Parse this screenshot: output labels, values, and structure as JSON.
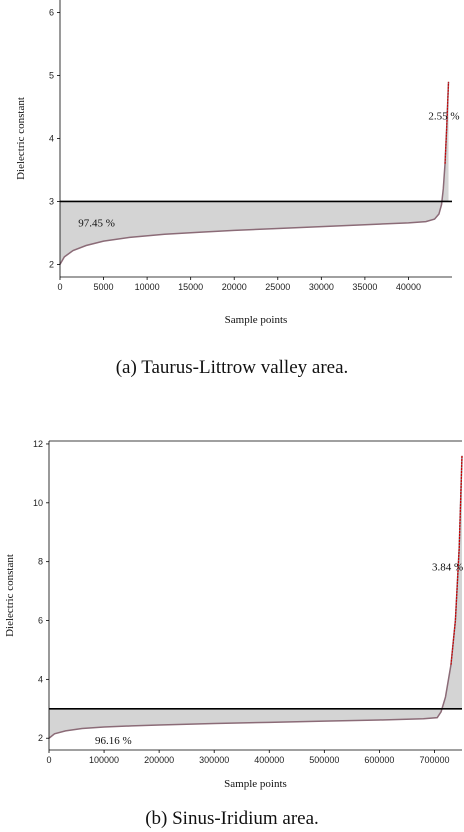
{
  "captions": {
    "a": "(a) Taurus-Littrow valley area.",
    "b": "(b) Sinus-Iridium area."
  },
  "colors": {
    "fill": "#d4d4d4",
    "curve": "#8b6b77",
    "threshold": "#000000",
    "tail": "#cc0000"
  },
  "chart_data": [
    {
      "type": "area",
      "title": "",
      "xlabel": "Sample points",
      "ylabel": "Dielectric constant",
      "xlim": [
        0,
        45000
      ],
      "ylim": [
        1.8,
        6.2
      ],
      "xticks": [
        0,
        5000,
        10000,
        15000,
        20000,
        25000,
        30000,
        35000,
        40000
      ],
      "xtick_labels": [
        "0",
        "5000",
        "10000",
        "15000",
        "20000",
        "25000",
        "30000",
        "35000",
        "40000"
      ],
      "yticks": [
        2,
        3,
        4,
        5,
        6
      ],
      "ytick_labels": [
        "2",
        "3",
        "4",
        "5",
        "6"
      ],
      "threshold": 3,
      "annotations": [
        {
          "text": "97.45 %",
          "x": 600,
          "y": 2.6
        },
        {
          "text": "2.55 %",
          "x": 40800,
          "y": 4.3
        }
      ],
      "x": [
        0,
        500,
        1500,
        3000,
        5000,
        8000,
        12000,
        16000,
        20000,
        25000,
        30000,
        35000,
        40000,
        42000,
        43000,
        43500,
        43800,
        44000,
        44200,
        44400,
        44600
      ],
      "y": [
        2.0,
        2.12,
        2.22,
        2.3,
        2.37,
        2.43,
        2.48,
        2.51,
        2.54,
        2.57,
        2.6,
        2.63,
        2.66,
        2.68,
        2.72,
        2.8,
        2.95,
        3.2,
        3.6,
        4.2,
        4.9
      ]
    },
    {
      "type": "area",
      "title": "",
      "xlabel": "Sample points",
      "ylabel": "Dielectric constant",
      "xlim": [
        0,
        750000
      ],
      "ylim": [
        1.6,
        12.1
      ],
      "xticks": [
        0,
        100000,
        200000,
        300000,
        400000,
        500000,
        600000,
        700000
      ],
      "xtick_labels": [
        "0",
        "100000",
        "200000",
        "300000",
        "400000",
        "500000",
        "600000",
        "700000"
      ],
      "yticks": [
        2,
        4,
        6,
        8,
        10,
        12
      ],
      "ytick_labels": [
        "2",
        "4",
        "6",
        "8",
        "10",
        "12"
      ],
      "threshold": 3,
      "annotations": [
        {
          "text": "96.16 %",
          "x": 60000,
          "y": 1.8
        },
        {
          "text": "3.84 %",
          "x": 672000,
          "y": 7.7
        }
      ],
      "x": [
        0,
        10000,
        30000,
        60000,
        100000,
        150000,
        200000,
        300000,
        400000,
        500000,
        600000,
        680000,
        705000,
        712000,
        720000,
        730000,
        738000,
        745000,
        750000
      ],
      "y": [
        2.0,
        2.15,
        2.25,
        2.33,
        2.38,
        2.42,
        2.45,
        2.5,
        2.54,
        2.58,
        2.62,
        2.66,
        2.7,
        2.9,
        3.4,
        4.5,
        6.0,
        8.5,
        11.6
      ]
    }
  ]
}
